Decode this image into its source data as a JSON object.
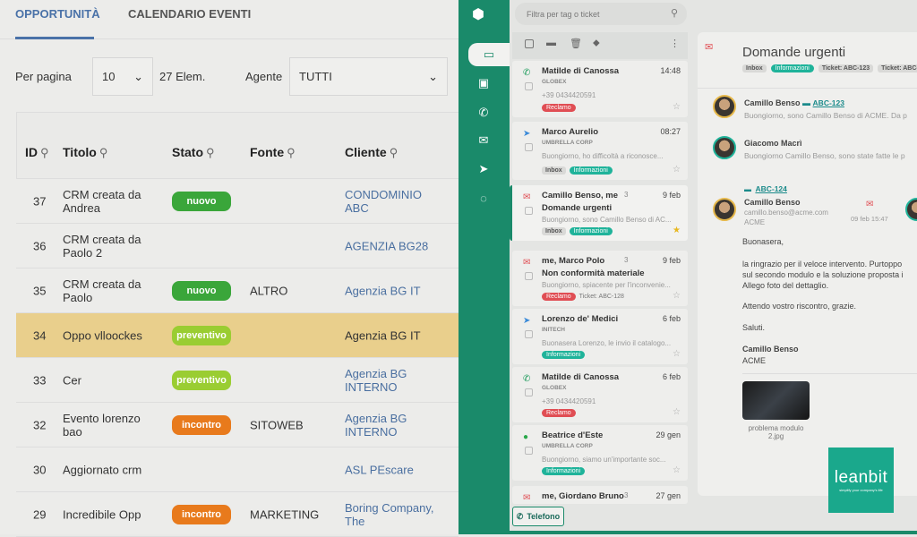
{
  "tabs": [
    "OPPORTUNITÀ",
    "CALENDARIO EVENTI"
  ],
  "filters": {
    "per_page_label": "Per pagina",
    "per_page_value": "10",
    "count": "27 Elem.",
    "agent_label": "Agente",
    "agent_value": "TUTTI"
  },
  "columns": [
    "ID",
    "Titolo",
    "Stato",
    "Fonte",
    "Cliente"
  ],
  "rows": [
    {
      "id": "37",
      "title": "CRM creata da Andrea",
      "stato": "nuovo",
      "fonte": "",
      "cliente": "CONDOMINIO ABC"
    },
    {
      "id": "36",
      "title": "CRM creata da Paolo 2",
      "stato": "",
      "fonte": "",
      "cliente": "AGENZIA BG28"
    },
    {
      "id": "35",
      "title": "CRM creata da Paolo",
      "stato": "nuovo",
      "fonte": "ALTRO",
      "cliente": "Agenzia BG IT"
    },
    {
      "id": "34",
      "title": "Oppo vlloockes",
      "stato": "preventivo",
      "fonte": "",
      "cliente": "Agenzia BG IT"
    },
    {
      "id": "33",
      "title": "Cer",
      "stato": "preventivo",
      "fonte": "",
      "cliente": "Agenzia BG INTERNO"
    },
    {
      "id": "32",
      "title": "Evento lorenzo bao",
      "stato": "incontro",
      "fonte": "SITOWEB",
      "cliente": "Agenzia BG INTERNO"
    },
    {
      "id": "30",
      "title": "Aggiornato crm",
      "stato": "",
      "fonte": "",
      "cliente": "ASL PEscare"
    },
    {
      "id": "29",
      "title": "Incredibile Opp",
      "stato": "incontro",
      "fonte": "MARKETING",
      "cliente": "Boring Company, The"
    }
  ],
  "status_colors": {
    "nuovo": "#3aa63a",
    "preventivo": "#9acd32",
    "incontro": "#e87a1c"
  },
  "highlight_color": "#e9cf8c",
  "sidebar_icons": [
    "inbox-icon",
    "contacts-icon",
    "phone-icon",
    "mail-icon",
    "telegram-icon",
    "whatsapp-icon"
  ],
  "search_placeholder": "Filtra per tag o ticket",
  "messages": [
    {
      "icon": "phone",
      "name": "Matilde di Canossa",
      "time": "14:48",
      "company": "GLOBEX",
      "preview": "+39 0434420591",
      "tags": [
        {
          "t": "Reclamo",
          "k": "red"
        }
      ]
    },
    {
      "icon": "telegram",
      "name": "Marco Aurelio",
      "time": "08:27",
      "company": "UMBRELLA CORP",
      "preview": "Buongiorno, ho difficoltà a riconosce...",
      "tags": [
        {
          "t": "Inbox",
          "k": "gray"
        },
        {
          "t": "Informazioni",
          "k": "teal"
        }
      ]
    },
    {
      "icon": "mail",
      "name": "Camillo Benso, me",
      "count": "3",
      "time": "9 feb",
      "subject": "Domande urgenti",
      "preview": "Buongiorno, sono Camillo Benso di AC...",
      "tags": [
        {
          "t": "Inbox",
          "k": "gray"
        },
        {
          "t": "Informazioni",
          "k": "teal"
        }
      ],
      "starred": true
    },
    {
      "icon": "mail",
      "name": "me, Marco Polo",
      "count": "3",
      "time": "9 feb",
      "subject": "Non conformità materiale",
      "preview": "Buongiorno, spiacente per l'inconvenie...",
      "tags": [
        {
          "t": "Reclamo",
          "k": "red"
        },
        {
          "t": "Ticket: ABC-128",
          "k": "plain"
        }
      ]
    },
    {
      "icon": "telegram",
      "name": "Lorenzo de' Medici",
      "time": "6 feb",
      "company": "INITECH",
      "preview": "Buonasera Lorenzo, le invio il catalogo...",
      "tags": [
        {
          "t": "Informazioni",
          "k": "teal"
        }
      ]
    },
    {
      "icon": "phone",
      "name": "Matilde di Canossa",
      "time": "6 feb",
      "company": "GLOBEX",
      "preview": "+39 0434420591",
      "tags": [
        {
          "t": "Reclamo",
          "k": "red"
        }
      ]
    },
    {
      "icon": "whatsapp",
      "name": "Beatrice d'Este",
      "time": "29 gen",
      "company": "UMBRELLA CORP",
      "preview": "Buongiorno, siamo un'importante soc...",
      "tags": [
        {
          "t": "Informazioni",
          "k": "teal"
        }
      ]
    },
    {
      "icon": "mail",
      "name": "me, Giordano Bruno",
      "count": "3",
      "time": "27 gen"
    }
  ],
  "phone_button": "Telefono",
  "detail": {
    "title": "Domande urgenti",
    "tags": [
      "Inbox",
      "Informazioni",
      "Ticket: ABC-123",
      "Ticket: ABC-12"
    ],
    "thread": [
      {
        "name": "Camillo Benso",
        "ticket": "ABC-123",
        "preview": "Buongiorno, sono Camillo Benso di ACME. Da p"
      },
      {
        "name": "Giacomo Macrì",
        "preview": "Buongiorno Camillo Benso, sono state fatte le p"
      }
    ],
    "ticket2": "ABC-124",
    "sender": {
      "name": "Camillo Benso",
      "email": "camillo.benso@acme.com",
      "company": "ACME",
      "date": "09 feb 15:47"
    },
    "body": [
      "Buonasera,",
      "la ringrazio per il veloce intervento. Purtoppo",
      "sul secondo modulo e la soluzione proposta i",
      "Allego foto del dettaglio.",
      "Attendo vostro riscontro, grazie.",
      "Saluti."
    ],
    "signature_name": "Camillo Benso",
    "signature_company": "ACME",
    "attachment": "problema modulo 2.jpg"
  },
  "logo": {
    "name": "leanbit",
    "tagline": "simplify your company's life"
  }
}
